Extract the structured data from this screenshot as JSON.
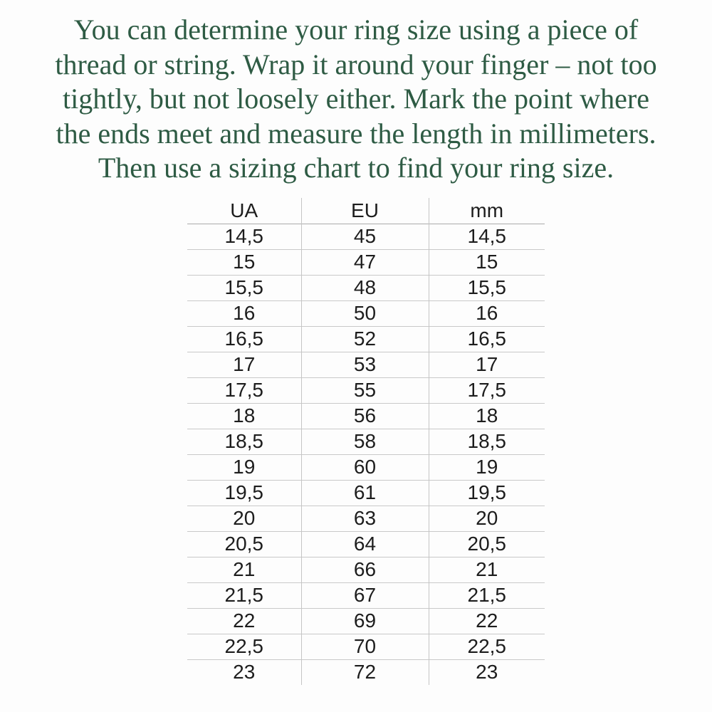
{
  "intro": {
    "lines": [
      "You can determine your ring size using a piece of",
      "thread or string. Wrap it around your finger – not too",
      "tightly, but not loosely either. Mark the point where",
      "the ends meet and measure the length in millimeters.",
      "Then use a sizing chart to find your ring size."
    ]
  },
  "size_chart": {
    "columns": [
      "UA",
      "EU",
      "mm"
    ],
    "rows": [
      [
        "14,5",
        "45",
        "14,5"
      ],
      [
        "15",
        "47",
        "15"
      ],
      [
        "15,5",
        "48",
        "15,5"
      ],
      [
        "16",
        "50",
        "16"
      ],
      [
        "16,5",
        "52",
        "16,5"
      ],
      [
        "17",
        "53",
        "17"
      ],
      [
        "17,5",
        "55",
        "17,5"
      ],
      [
        "18",
        "56",
        "18"
      ],
      [
        "18,5",
        "58",
        "18,5"
      ],
      [
        "19",
        "60",
        "19"
      ],
      [
        "19,5",
        "61",
        "19,5"
      ],
      [
        "20",
        "63",
        "20"
      ],
      [
        "20,5",
        "64",
        "20,5"
      ],
      [
        "21",
        "66",
        "21"
      ],
      [
        "21,5",
        "67",
        "21,5"
      ],
      [
        "22",
        "69",
        "22"
      ],
      [
        "22,5",
        "70",
        "22,5"
      ],
      [
        "23",
        "72",
        "23"
      ]
    ]
  },
  "colors": {
    "background": "#fdfdfd",
    "text_green": "#2e5b44",
    "table_text": "#1d1d1d",
    "header_line": "#aaaaaa",
    "row_line": "#c9c9c9",
    "column_line": "#c5c5c5"
  }
}
